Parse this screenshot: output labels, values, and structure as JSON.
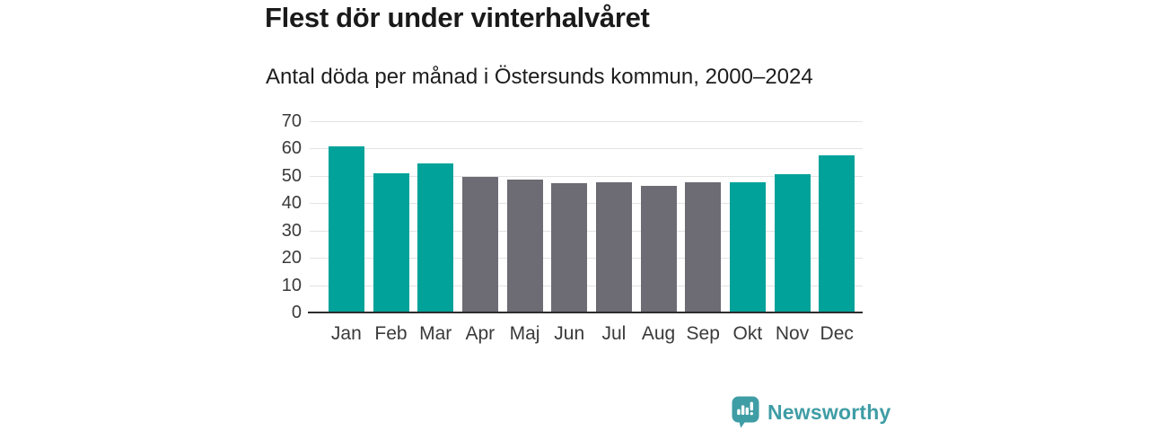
{
  "chart": {
    "title": "Flest dör under vinterhalvåret",
    "subtitle": "Antal döda per månad i Östersunds kommun, 2000–2024"
  },
  "chart_data": {
    "type": "bar",
    "categories": [
      "Jan",
      "Feb",
      "Mar",
      "Apr",
      "Maj",
      "Jun",
      "Jul",
      "Aug",
      "Sep",
      "Okt",
      "Nov",
      "Dec"
    ],
    "values": [
      60.8,
      51.1,
      54.4,
      49.7,
      48.7,
      47.2,
      47.7,
      46.4,
      47.7,
      47.8,
      50.6,
      57.4
    ],
    "bar_groups": [
      "winter",
      "winter",
      "winter",
      "summer",
      "summer",
      "summer",
      "summer",
      "summer",
      "summer",
      "winter",
      "winter",
      "winter"
    ],
    "palette": {
      "winter": "#00a29a",
      "summer": "#6d6c74"
    },
    "title": "Flest dör under vinterhalvåret",
    "subtitle": "Antal döda per månad i Östersunds kommun, 2000–2024",
    "xlabel": "",
    "ylabel": "",
    "ylim": [
      0,
      70
    ],
    "yticks": [
      0,
      10,
      20,
      30,
      40,
      50,
      60,
      70
    ],
    "grid": true,
    "legend": false
  },
  "footer": {
    "brand": "Newsworthy"
  },
  "colors": {
    "accent_teal": "#00a29a",
    "neutral_gray": "#6d6c74",
    "brand_teal": "#3f9da5",
    "gridline": "#e3e3e3",
    "axis_line": "#2d2d2d"
  }
}
